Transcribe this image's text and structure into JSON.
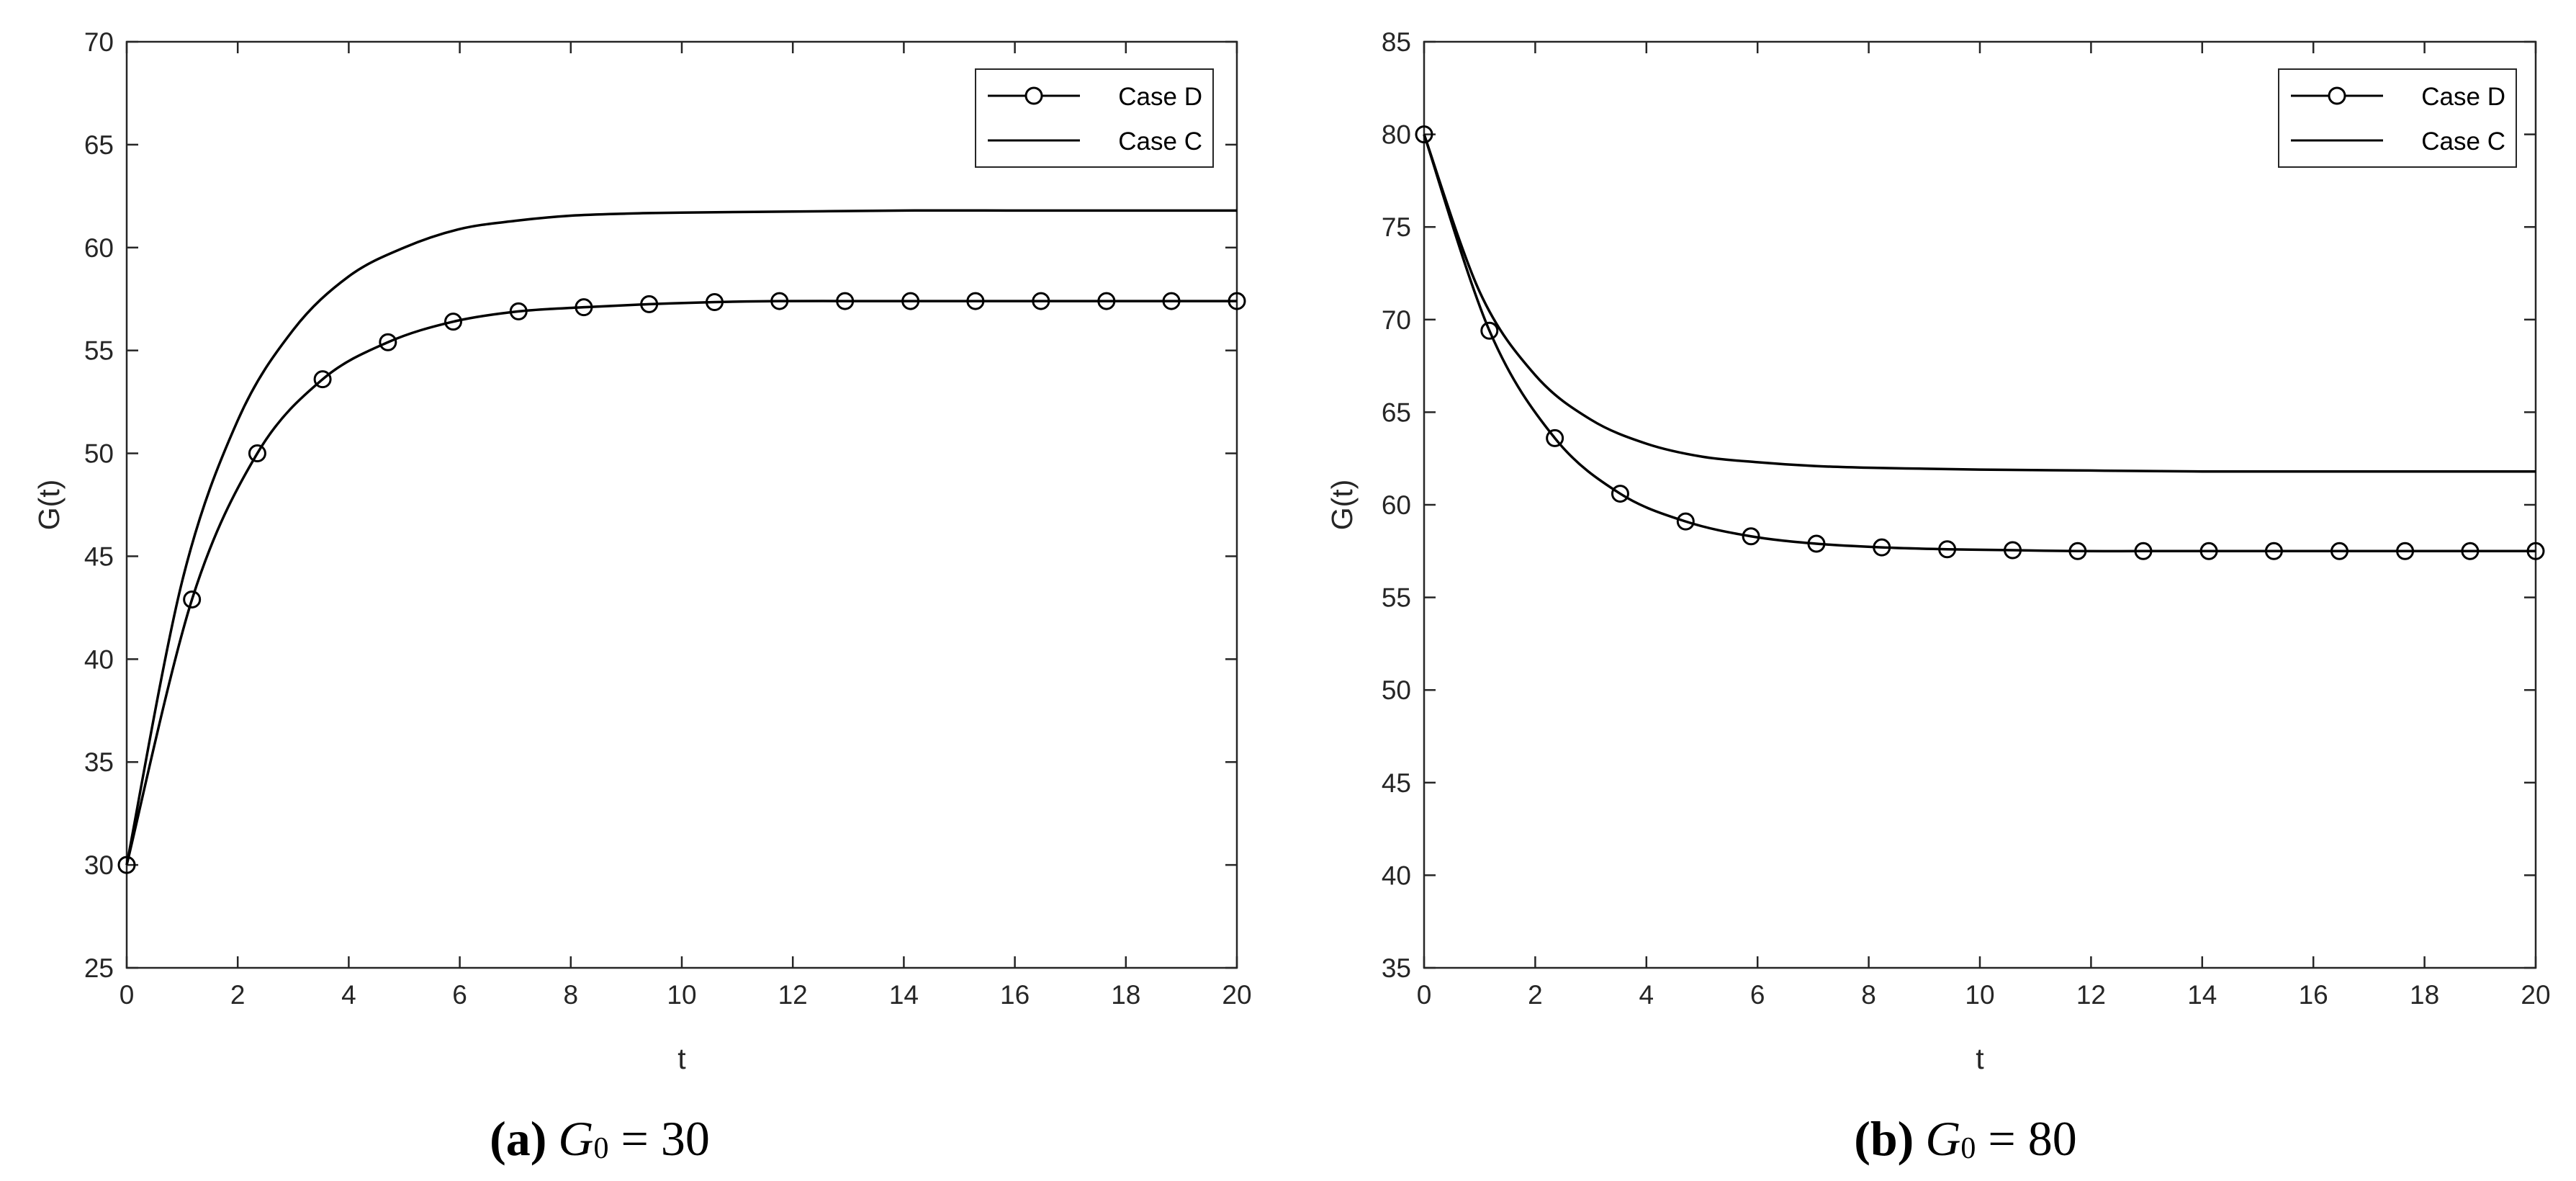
{
  "chart_data": [
    {
      "type": "line",
      "caption": {
        "label": "(a)",
        "symbol": "G",
        "subscript": "0",
        "eq": " = 30"
      },
      "xlabel": "t",
      "ylabel": "G(t)",
      "xlim": [
        0,
        20
      ],
      "ylim": [
        25,
        70
      ],
      "xticks": [
        0,
        2,
        4,
        6,
        8,
        10,
        12,
        14,
        16,
        18,
        20
      ],
      "xtick_labels": [
        "0",
        "2",
        "4",
        "6",
        "8",
        "10",
        "12",
        "14",
        "16",
        "18",
        "20"
      ],
      "yticks": [
        25,
        30,
        35,
        40,
        45,
        50,
        55,
        60,
        65,
        70
      ],
      "legend_position": "top-right",
      "series": [
        {
          "name": "Case D",
          "marker": "circle",
          "x": [
            0,
            1.176,
            2.353,
            3.529,
            4.706,
            5.882,
            7.059,
            8.235,
            9.412,
            10.59,
            11.76,
            12.94,
            14.12,
            15.29,
            16.47,
            17.65,
            18.82,
            20
          ],
          "y": [
            30,
            42.9,
            50.0,
            53.6,
            55.4,
            56.4,
            56.9,
            57.1,
            57.25,
            57.35,
            57.4,
            57.4,
            57.4,
            57.4,
            57.4,
            57.4,
            57.4,
            57.4
          ]
        },
        {
          "name": "Case C",
          "marker": "none",
          "x": [
            0,
            1,
            2,
            3,
            4,
            5,
            6,
            7,
            8,
            9,
            10,
            12,
            14,
            16,
            18,
            20
          ],
          "y": [
            30,
            43.8,
            51.6,
            56.0,
            58.6,
            60.0,
            60.9,
            61.3,
            61.55,
            61.65,
            61.7,
            61.75,
            61.8,
            61.8,
            61.8,
            61.8
          ]
        }
      ]
    },
    {
      "type": "line",
      "caption": {
        "label": "(b)",
        "symbol": "G",
        "subscript": "0",
        "eq": " = 80"
      },
      "xlabel": "t",
      "ylabel": "G(t)",
      "xlim": [
        0,
        20
      ],
      "ylim": [
        35,
        85
      ],
      "xticks": [
        0,
        2,
        4,
        6,
        8,
        10,
        12,
        14,
        16,
        18,
        20
      ],
      "xtick_labels": [
        "0",
        "2",
        "4",
        "6",
        "8",
        "10",
        "12",
        "14",
        "16",
        "18",
        "20"
      ],
      "yticks": [
        35,
        40,
        45,
        50,
        55,
        60,
        65,
        70,
        75,
        80,
        85
      ],
      "legend_position": "top-right",
      "series": [
        {
          "name": "Case D",
          "marker": "circle",
          "x": [
            0,
            1.176,
            2.353,
            3.529,
            4.706,
            5.882,
            7.059,
            8.235,
            9.412,
            10.59,
            11.76,
            12.94,
            14.12,
            15.29,
            16.47,
            17.65,
            18.82,
            20
          ],
          "y": [
            80,
            69.4,
            63.6,
            60.6,
            59.1,
            58.3,
            57.9,
            57.7,
            57.6,
            57.55,
            57.5,
            57.5,
            57.5,
            57.5,
            57.5,
            57.5,
            57.5,
            57.5
          ]
        },
        {
          "name": "Case C",
          "marker": "none",
          "x": [
            0,
            1,
            2,
            3,
            4,
            5,
            6,
            7,
            8,
            9,
            10,
            12,
            14,
            16,
            18,
            20
          ],
          "y": [
            80,
            71.5,
            67.0,
            64.6,
            63.3,
            62.6,
            62.3,
            62.1,
            62.0,
            61.95,
            61.9,
            61.85,
            61.8,
            61.8,
            61.8,
            61.8
          ]
        }
      ]
    }
  ]
}
